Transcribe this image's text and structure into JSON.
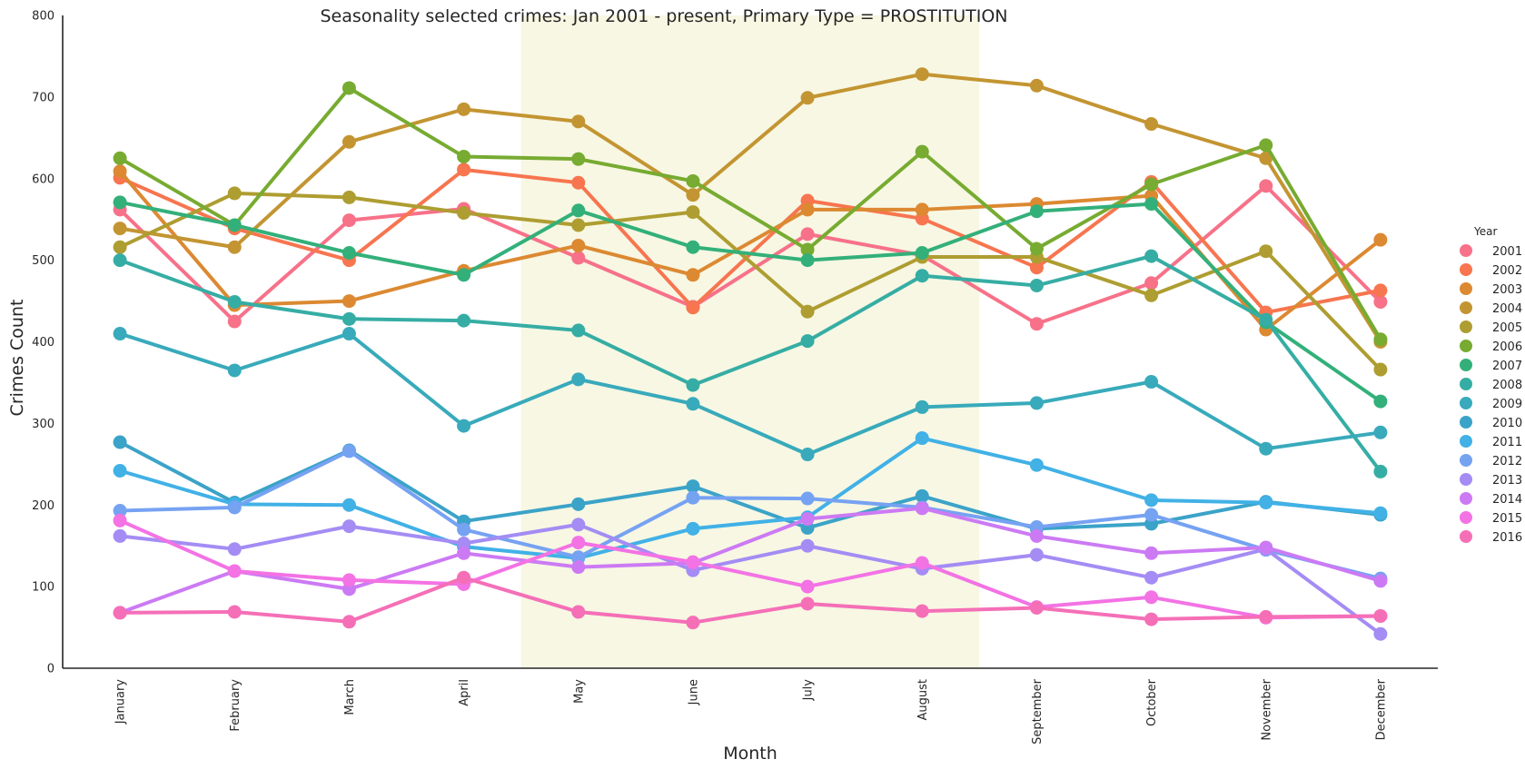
{
  "chart_data": {
    "type": "line",
    "title": "Seasonality selected crimes: Jan 2001 - present, Primary Type = PROSTITUTION",
    "xlabel": "Month",
    "ylabel": "Crimes Count",
    "ylim": [
      0,
      800
    ],
    "yticks": [
      "0",
      "100",
      "200",
      "300",
      "400",
      "500",
      "600",
      "700",
      "800"
    ],
    "categories": [
      "January",
      "February",
      "March",
      "April",
      "May",
      "June",
      "July",
      "August",
      "September",
      "October",
      "November",
      "December"
    ],
    "highlight_span": {
      "from": "May",
      "to": "August",
      "color": "#f7f7e3"
    },
    "grid": false,
    "legend": {
      "title": "Year",
      "placement": "right"
    },
    "series": [
      {
        "name": "2001",
        "color": "#f77189",
        "values": [
          562,
          425,
          549,
          563,
          503,
          443,
          532,
          506,
          422,
          472,
          591,
          449
        ]
      },
      {
        "name": "2002",
        "color": "#f7754f",
        "values": [
          601,
          539,
          500,
          611,
          595,
          442,
          573,
          551,
          491,
          596,
          436,
          463
        ]
      },
      {
        "name": "2003",
        "color": "#dc8932",
        "values": [
          609,
          445,
          450,
          487,
          518,
          482,
          562,
          562,
          569,
          579,
          415,
          525
        ]
      },
      {
        "name": "2004",
        "color": "#c39532",
        "values": [
          539,
          516,
          645,
          685,
          670,
          580,
          699,
          728,
          714,
          667,
          625,
          400
        ]
      },
      {
        "name": "2005",
        "color": "#ae9d31",
        "values": [
          516,
          582,
          577,
          558,
          543,
          559,
          437,
          504,
          504,
          457,
          511,
          366
        ]
      },
      {
        "name": "2006",
        "color": "#77ab31",
        "values": [
          625,
          543,
          711,
          627,
          624,
          597,
          513,
          633,
          514,
          593,
          641,
          403
        ]
      },
      {
        "name": "2007",
        "color": "#33b07a",
        "values": [
          571,
          543,
          509,
          482,
          561,
          516,
          500,
          509,
          560,
          569,
          424,
          327
        ]
      },
      {
        "name": "2008",
        "color": "#36ada4",
        "values": [
          500,
          449,
          428,
          426,
          414,
          347,
          401,
          481,
          469,
          505,
          427,
          241
        ]
      },
      {
        "name": "2009",
        "color": "#38aabb",
        "values": [
          410,
          365,
          410,
          297,
          354,
          324,
          262,
          320,
          325,
          351,
          269,
          289
        ]
      },
      {
        "name": "2010",
        "color": "#3ba3c8",
        "values": [
          277,
          203,
          267,
          180,
          201,
          223,
          172,
          211,
          171,
          177,
          204,
          188
        ]
      },
      {
        "name": "2011",
        "color": "#41b1e6",
        "values": [
          242,
          201,
          200,
          149,
          135,
          171,
          185,
          282,
          249,
          206,
          203,
          190
        ]
      },
      {
        "name": "2012",
        "color": "#76a2f2",
        "values": [
          193,
          197,
          266,
          170,
          136,
          209,
          208,
          197,
          173,
          188,
          145,
          110
        ]
      },
      {
        "name": "2013",
        "color": "#a48cf4",
        "values": [
          162,
          146,
          174,
          153,
          176,
          120,
          150,
          122,
          139,
          111,
          146,
          42
        ]
      },
      {
        "name": "2014",
        "color": "#cc7af4",
        "values": [
          68,
          119,
          97,
          141,
          124,
          129,
          183,
          196,
          162,
          141,
          148,
          107
        ]
      },
      {
        "name": "2015",
        "color": "#f372e4",
        "values": [
          181,
          119,
          108,
          103,
          154,
          130,
          100,
          129,
          75,
          87,
          62,
          64
        ]
      },
      {
        "name": "2016",
        "color": "#f56fb7",
        "values": [
          68,
          69,
          57,
          111,
          69,
          56,
          79,
          70,
          74,
          60,
          63,
          64
        ]
      }
    ]
  }
}
